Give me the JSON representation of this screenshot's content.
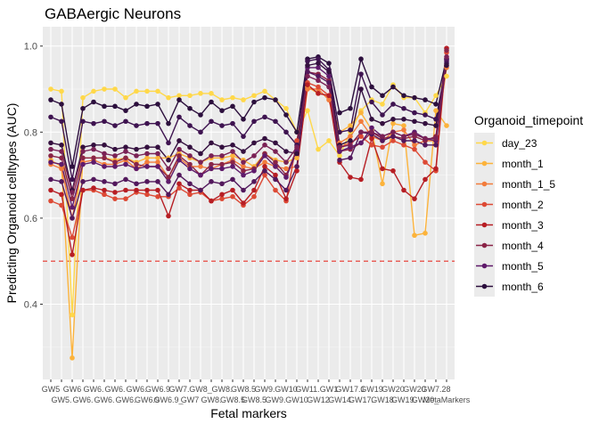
{
  "chart_data": {
    "type": "line",
    "title": "GABAergic Neurons",
    "xlabel": "Fetal markers",
    "ylabel": "Predicting Organoid celltypes (AUC)",
    "ylim": [
      0.225,
      1.045
    ],
    "yticks": [
      0.4,
      0.6,
      0.8,
      1.0
    ],
    "ytick_labels": [
      "0.4",
      "0.6",
      "0.8",
      "1.0"
    ],
    "grid": true,
    "legend_title": "Organoid_timepoint",
    "legend_position": "right",
    "reference_line": {
      "y": 0.5,
      "color": "#e8322a",
      "style": "dashed"
    },
    "categories": [
      "GW5",
      "GW5.",
      "GW6",
      "GW6.",
      "GW6.",
      "GW6.",
      "GW6.",
      "GW6.",
      "GW6.",
      "GW6.9",
      "GW6.9_",
      "GW7.",
      "GW7",
      "GW8",
      "GW8_",
      "GW8.",
      "GW8.",
      "GW8.5",
      "GW8.5",
      "GW9.",
      "GW9.",
      "GW10",
      "GW10",
      "GW11.",
      "GW12",
      "GW14",
      "GW1",
      "GW17.",
      "GW17.1",
      "GW18",
      "GW19",
      "GW19.",
      "GW20",
      "GW20_",
      "GW20",
      "GW2",
      "GW7.28",
      "MetaMarkers"
    ],
    "xtick_row1": [
      "GW5",
      "",
      "GW6",
      "",
      "GW6.",
      "",
      "GW6.",
      "",
      "GW6.",
      "",
      "GW6.9",
      "",
      "GW7.",
      "",
      "GW8_",
      "",
      "GW8.",
      "",
      "GW8.5",
      "",
      "GW9.",
      "",
      "GW10",
      "",
      "GW11.",
      "",
      "GW1",
      "",
      "GW17.1",
      "",
      "GW19",
      "",
      "GW20",
      "",
      "GW20",
      "",
      "GW7.28",
      ""
    ],
    "xtick_row2": [
      "",
      "GW5.",
      "",
      "GW6.",
      "",
      "GW6.",
      "",
      "GW6.",
      "",
      "GW6.9",
      "",
      "GW6.9_",
      "",
      "GW7",
      "",
      "GW8.",
      "",
      "GW8.5",
      "",
      "GW8.5",
      "",
      "GW9.",
      "",
      "GW10",
      "",
      "GW12",
      "",
      "GW14",
      "",
      "GW17.",
      "",
      "GW18",
      "",
      "GW19.",
      "",
      "GW20_",
      "",
      "MetaMarkers"
    ],
    "series": [
      {
        "name": "day_23",
        "color": "#ffd84a",
        "values": [
          0.9,
          0.895,
          0.375,
          0.88,
          0.895,
          0.9,
          0.9,
          0.88,
          0.895,
          0.895,
          0.895,
          0.88,
          0.885,
          0.885,
          0.89,
          0.89,
          0.875,
          0.88,
          0.875,
          0.885,
          0.895,
          0.875,
          0.855,
          0.8,
          0.85,
          0.76,
          0.78,
          0.745,
          0.8,
          0.85,
          0.875,
          0.865,
          0.91,
          0.88,
          0.88,
          0.845,
          0.885,
          0.93
        ]
      },
      {
        "name": "month_1",
        "color": "#fcb33b",
        "values": [
          0.735,
          0.72,
          0.275,
          0.74,
          0.74,
          0.74,
          0.735,
          0.74,
          0.73,
          0.74,
          0.74,
          0.74,
          0.75,
          0.74,
          0.73,
          0.74,
          0.74,
          0.745,
          0.735,
          0.72,
          0.75,
          0.735,
          0.73,
          0.74,
          0.905,
          0.89,
          0.885,
          0.8,
          0.815,
          0.845,
          0.805,
          0.68,
          0.82,
          0.815,
          0.56,
          0.565,
          0.85,
          0.815
        ]
      },
      {
        "name": "month_1_5",
        "color": "#f27c3c",
        "values": [
          0.725,
          0.715,
          0.6,
          0.73,
          0.735,
          0.725,
          0.725,
          0.735,
          0.715,
          0.73,
          0.73,
          0.695,
          0.74,
          0.72,
          0.72,
          0.715,
          0.725,
          0.735,
          0.72,
          0.715,
          0.73,
          0.72,
          0.715,
          0.72,
          0.9,
          0.9,
          0.875,
          0.775,
          0.79,
          0.825,
          0.79,
          0.78,
          0.8,
          0.805,
          0.77,
          0.78,
          0.78,
          0.95
        ]
      },
      {
        "name": "month_2",
        "color": "#dd4a35",
        "values": [
          0.64,
          0.63,
          0.555,
          0.665,
          0.665,
          0.655,
          0.645,
          0.645,
          0.66,
          0.655,
          0.65,
          0.65,
          0.67,
          0.655,
          0.66,
          0.64,
          0.645,
          0.65,
          0.63,
          0.65,
          0.7,
          0.665,
          0.64,
          0.78,
          0.915,
          0.905,
          0.885,
          0.765,
          0.775,
          0.79,
          0.77,
          0.765,
          0.78,
          0.77,
          0.76,
          0.73,
          0.71,
          0.985
        ]
      },
      {
        "name": "month_3",
        "color": "#b71e24",
        "values": [
          0.665,
          0.655,
          0.515,
          0.665,
          0.67,
          0.665,
          0.66,
          0.665,
          0.665,
          0.665,
          0.665,
          0.605,
          0.68,
          0.665,
          0.665,
          0.64,
          0.655,
          0.665,
          0.635,
          0.665,
          0.72,
          0.7,
          0.645,
          0.71,
          0.91,
          0.89,
          0.885,
          0.73,
          0.695,
          0.69,
          0.785,
          0.715,
          0.71,
          0.665,
          0.645,
          0.69,
          0.715,
          0.995
        ]
      },
      {
        "name": "month_4",
        "color": "#8a2447",
        "values": [
          0.745,
          0.74,
          0.645,
          0.74,
          0.74,
          0.74,
          0.73,
          0.74,
          0.725,
          0.72,
          0.72,
          0.695,
          0.745,
          0.725,
          0.7,
          0.725,
          0.725,
          0.73,
          0.71,
          0.715,
          0.75,
          0.73,
          0.7,
          0.76,
          0.94,
          0.935,
          0.92,
          0.755,
          0.76,
          0.775,
          0.8,
          0.785,
          0.79,
          0.785,
          0.79,
          0.78,
          0.79,
          0.99
        ]
      },
      {
        "name": "month_5",
        "color": "#5f1a6b",
        "values": [
          0.73,
          0.725,
          0.625,
          0.725,
          0.73,
          0.72,
          0.72,
          0.725,
          0.715,
          0.72,
          0.72,
          0.685,
          0.735,
          0.715,
          0.7,
          0.715,
          0.715,
          0.72,
          0.7,
          0.71,
          0.745,
          0.72,
          0.695,
          0.755,
          0.95,
          0.95,
          0.93,
          0.755,
          0.765,
          0.775,
          0.81,
          0.79,
          0.8,
          0.79,
          0.8,
          0.785,
          0.78,
          0.965
        ]
      },
      {
        "name": "month_6",
        "color": "#2c0f3d",
        "values": [
          0.875,
          0.865,
          0.72,
          0.855,
          0.87,
          0.86,
          0.86,
          0.85,
          0.865,
          0.86,
          0.865,
          0.82,
          0.875,
          0.855,
          0.84,
          0.87,
          0.85,
          0.86,
          0.83,
          0.87,
          0.88,
          0.875,
          0.84,
          0.8,
          0.97,
          0.975,
          0.96,
          0.845,
          0.855,
          0.97,
          0.905,
          0.885,
          0.905,
          0.885,
          0.88,
          0.875,
          0.865,
          0.97
        ]
      },
      {
        "name": "",
        "color": "#3e1350",
        "values": [
          0.835,
          0.825,
          0.69,
          0.825,
          0.82,
          0.825,
          0.815,
          0.825,
          0.815,
          0.82,
          0.82,
          0.775,
          0.835,
          0.815,
          0.8,
          0.825,
          0.815,
          0.82,
          0.79,
          0.825,
          0.835,
          0.825,
          0.8,
          0.77,
          0.965,
          0.97,
          0.945,
          0.8,
          0.805,
          0.935,
          0.87,
          0.84,
          0.865,
          0.855,
          0.845,
          0.84,
          0.83,
          0.96
        ]
      },
      {
        "name": "",
        "color": "#34103f",
        "values": [
          0.775,
          0.77,
          0.665,
          0.765,
          0.77,
          0.77,
          0.76,
          0.765,
          0.76,
          0.765,
          0.765,
          0.735,
          0.78,
          0.765,
          0.75,
          0.775,
          0.765,
          0.77,
          0.755,
          0.775,
          0.785,
          0.775,
          0.755,
          0.75,
          0.955,
          0.96,
          0.94,
          0.77,
          0.78,
          0.9,
          0.83,
          0.82,
          0.83,
          0.83,
          0.825,
          0.82,
          0.815,
          0.955
        ]
      },
      {
        "name": "",
        "color": "#52185c",
        "values": [
          0.69,
          0.685,
          0.6,
          0.685,
          0.69,
          0.685,
          0.68,
          0.69,
          0.68,
          0.685,
          0.685,
          0.655,
          0.7,
          0.68,
          0.665,
          0.685,
          0.68,
          0.69,
          0.665,
          0.685,
          0.71,
          0.69,
          0.665,
          0.72,
          0.94,
          0.93,
          0.915,
          0.735,
          0.74,
          0.8,
          0.795,
          0.78,
          0.79,
          0.78,
          0.78,
          0.77,
          0.77,
          0.97
        ]
      },
      {
        "name": "",
        "color": "#7a2155",
        "values": [
          0.76,
          0.755,
          0.66,
          0.755,
          0.76,
          0.75,
          0.745,
          0.755,
          0.745,
          0.75,
          0.75,
          0.715,
          0.76,
          0.745,
          0.73,
          0.745,
          0.745,
          0.755,
          0.73,
          0.745,
          0.77,
          0.755,
          0.73,
          0.765,
          0.93,
          0.92,
          0.905,
          0.765,
          0.77,
          0.8,
          0.8,
          0.79,
          0.8,
          0.79,
          0.795,
          0.785,
          0.785,
          0.975
        ]
      }
    ]
  }
}
